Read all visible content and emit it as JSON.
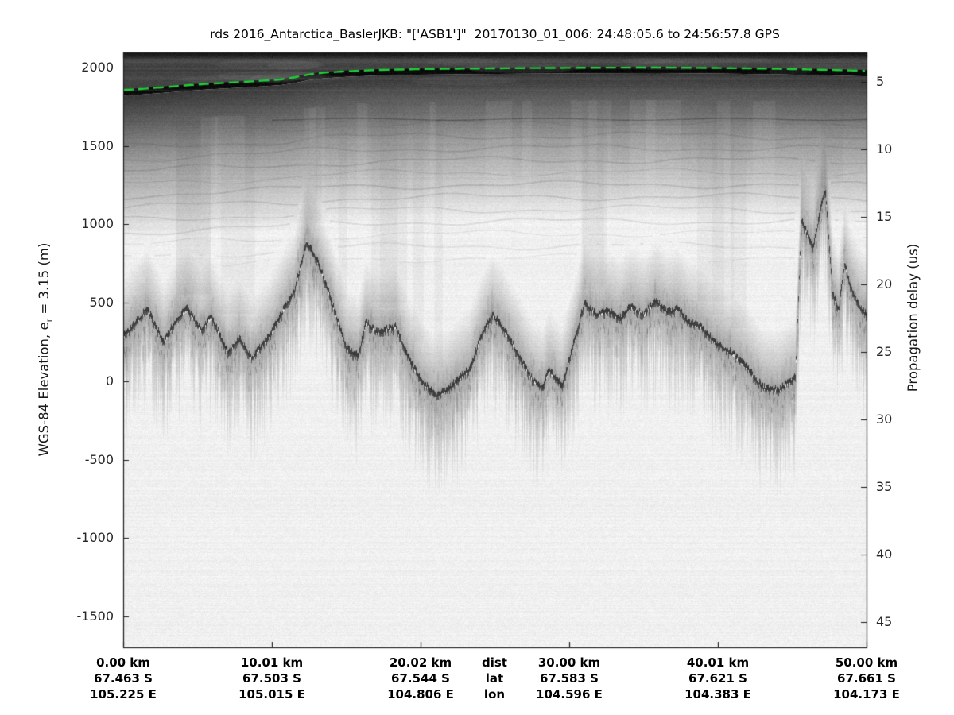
{
  "figure": {
    "title": "rds 2016_Antarctica_BaslerJKB: \"['ASB1']\"  20170130_01_006: 24:48:05.6 to 24:56:57.8 GPS",
    "left_axis": {
      "label_prefix": "WGS-84 Elevation, e",
      "label_sub": "r",
      "label_suffix": " = 3.15 (m)",
      "ticks": [
        "2000",
        "1500",
        "1000",
        "500",
        "0",
        "-500",
        "-1000",
        "-1500"
      ]
    },
    "right_axis": {
      "label": "Propagation delay (us)",
      "ticks": [
        "5",
        "10",
        "15",
        "20",
        "25",
        "30",
        "35",
        "40",
        "45"
      ]
    },
    "bottom_axis": {
      "key_labels": {
        "dist": "dist",
        "lat": "lat",
        "lon": "lon"
      },
      "columns": [
        {
          "dist": "0.00 km",
          "lat": "67.463 S",
          "lon": "105.225 E"
        },
        {
          "dist": "10.01 km",
          "lat": "67.503 S",
          "lon": "105.015 E"
        },
        {
          "dist": "20.02 km",
          "lat": "67.544 S",
          "lon": "104.806 E"
        },
        {
          "dist": "30.00 km",
          "lat": "67.583 S",
          "lon": "104.596 E"
        },
        {
          "dist": "40.01 km",
          "lat": "67.621 S",
          "lon": "104.383 E"
        },
        {
          "dist": "50.00 km",
          "lat": "67.661 S",
          "lon": "104.173 E"
        }
      ]
    }
  },
  "chart_data": {
    "type": "heatmap",
    "description": "Ice-penetrating radar echogram (radargram); grayscale intensity = echo strength. Dark band at top is the ice surface return (green dashed = surface pick); rugged dark trace below is the bed echo.",
    "title": "rds 2016_Antarctica_BaslerJKB: \"['ASB1']\"  20170130_01_006: 24:48:05.6 to 24:56:57.8 GPS",
    "ylabel_left": "WGS-84 Elevation, e_r = 3.15 (m)",
    "ylabel_right": "Propagation delay (us)",
    "xlabel": "distance (km) with lat / lon annotations",
    "xlim_km": [
      0,
      50
    ],
    "ylim_elevation_m": [
      -1700,
      2100
    ],
    "x_ticks_km": [
      0,
      10.01,
      20.02,
      30.0,
      40.01,
      50.0
    ],
    "elevation_ticks_m": [
      2000,
      1500,
      1000,
      500,
      0,
      -500,
      -1000,
      -1500
    ],
    "delay_ticks_us": [
      5,
      10,
      15,
      20,
      25,
      30,
      35,
      40,
      45
    ],
    "surface_pick": {
      "style": "dashed",
      "x_km": [
        0,
        1,
        2.5,
        4,
        5.5,
        7,
        8.5,
        9.5,
        10.5,
        11.5,
        12.5,
        13.5,
        15,
        17,
        20,
        24,
        28,
        32,
        36,
        40,
        44,
        47,
        50
      ],
      "elevation_m": [
        1852,
        1857,
        1868,
        1880,
        1890,
        1898,
        1906,
        1912,
        1918,
        1932,
        1951,
        1962,
        1971,
        1979,
        1985,
        1989,
        1992,
        1994,
        1995,
        1992,
        1987,
        1981,
        1974
      ]
    },
    "bed_echo": {
      "x_km": [
        0,
        0.8,
        1.6,
        2.7,
        3.6,
        4.3,
        5.2,
        5.9,
        7.0,
        7.8,
        8.6,
        9.9,
        11.0,
        11.5,
        12.3,
        13.1,
        13.9,
        15.0,
        15.8,
        16.3,
        17.1,
        18.3,
        19.3,
        20.1,
        21.0,
        21.7,
        22.5,
        23.3,
        24.1,
        24.8,
        25.4,
        26.5,
        27.5,
        28.2,
        28.6,
        29.5,
        30.3,
        31.0,
        31.8,
        32.6,
        33.4,
        34.1,
        35.0,
        35.8,
        36.6,
        37.3,
        38.0,
        38.8,
        39.8,
        40.9,
        42.0,
        43.0,
        44.1,
        45.2,
        45.6,
        46.0,
        46.4,
        46.9,
        47.2,
        47.7,
        48.1,
        48.5,
        48.9,
        49.5,
        50.0
      ],
      "elevation_m": [
        290,
        380,
        466,
        253,
        405,
        466,
        330,
        415,
        192,
        279,
        152,
        304,
        506,
        582,
        896,
        760,
        542,
        213,
        168,
        380,
        314,
        355,
        127,
        0,
        -86,
        -51,
        15,
        86,
        304,
        430,
        365,
        187,
        15,
        -35,
        76,
        -25,
        253,
        506,
        430,
        455,
        405,
        481,
        430,
        517,
        445,
        470,
        380,
        355,
        253,
        187,
        86,
        -35,
        -51,
        35,
        1038,
        937,
        861,
        1120,
        1225,
        572,
        455,
        760,
        608,
        481,
        430
      ]
    },
    "internal_layer": {
      "x_km": [
        10,
        50
      ],
      "elevation_m": 1670
    },
    "colors": {
      "background": "#f0f0f0",
      "above_surface_band": "#434343",
      "surface_return": "#0a0a0a",
      "bed_echo_core": "#343434",
      "frame": "#1a1a1a",
      "surface_pick_green": "#1fd038"
    }
  }
}
